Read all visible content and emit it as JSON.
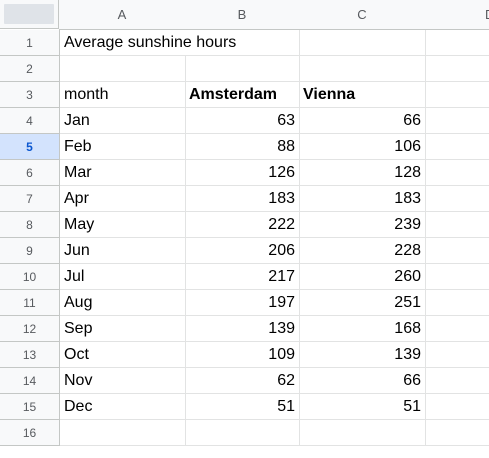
{
  "columns": [
    "A",
    "B",
    "C",
    "D"
  ],
  "selected_row": 5,
  "colors": {
    "header_bg": "#f8f9fa",
    "selected_row_bg": "#d3e3fd",
    "selected_row_text": "#0b57d0",
    "gridline": "#e2e3e3"
  },
  "rows": [
    {
      "n": "1",
      "a": "Average sunshine hours",
      "b": "",
      "c": ""
    },
    {
      "n": "2",
      "a": "",
      "b": "",
      "c": ""
    },
    {
      "n": "3",
      "a": "month",
      "b": "Amsterdam",
      "c": "Vienna"
    },
    {
      "n": "4",
      "a": "Jan",
      "b": "63",
      "c": "66"
    },
    {
      "n": "5",
      "a": "Feb",
      "b": "88",
      "c": "106"
    },
    {
      "n": "6",
      "a": "Mar",
      "b": "126",
      "c": "128"
    },
    {
      "n": "7",
      "a": "Apr",
      "b": "183",
      "c": "183"
    },
    {
      "n": "8",
      "a": "May",
      "b": "222",
      "c": "239"
    },
    {
      "n": "9",
      "a": "Jun",
      "b": "206",
      "c": "228"
    },
    {
      "n": "10",
      "a": "Jul",
      "b": "217",
      "c": "260"
    },
    {
      "n": "11",
      "a": "Aug",
      "b": "197",
      "c": "251"
    },
    {
      "n": "12",
      "a": "Sep",
      "b": "139",
      "c": "168"
    },
    {
      "n": "13",
      "a": "Oct",
      "b": "109",
      "c": "139"
    },
    {
      "n": "14",
      "a": "Nov",
      "b": "62",
      "c": "66"
    },
    {
      "n": "15",
      "a": "Dec",
      "b": "51",
      "c": "51"
    },
    {
      "n": "16",
      "a": "",
      "b": "",
      "c": ""
    }
  ]
}
